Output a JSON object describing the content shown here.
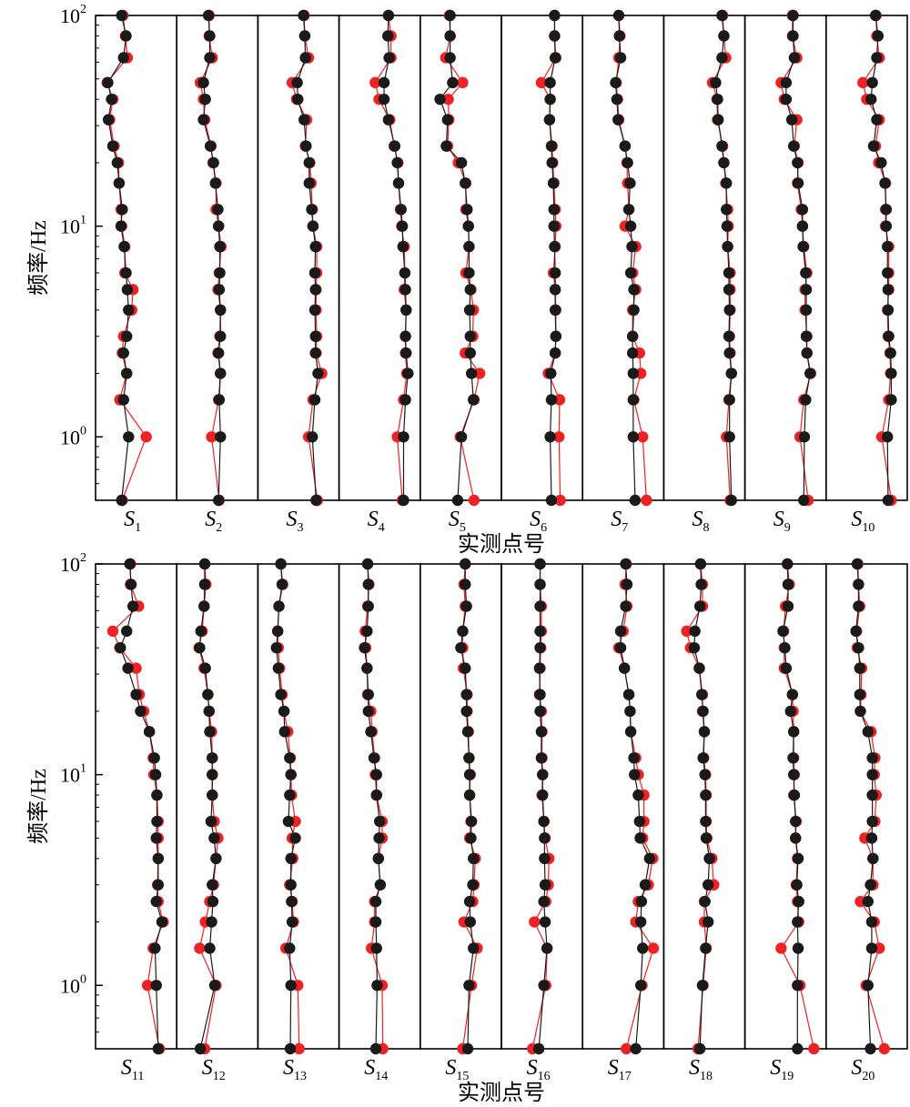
{
  "chart_data": [
    {
      "type": "line",
      "ylabel": "频率/Hz",
      "xlabel": "实测点号",
      "yscale": "log",
      "ylim": [
        0.5,
        100
      ],
      "yticks": [
        {
          "base": "10",
          "exp": "0"
        },
        {
          "base": "10",
          "exp": "1"
        },
        {
          "base": "10",
          "exp": "2"
        }
      ],
      "frequencies": [
        100,
        80,
        63,
        48,
        40,
        32,
        24,
        20,
        16,
        12,
        10,
        8,
        6,
        5,
        4,
        3,
        2.5,
        2,
        1.5,
        1,
        0.5
      ],
      "series_colors": {
        "black": "#1a1a1a",
        "red": "#ee2222"
      },
      "stations": [
        {
          "label": "S",
          "sub": "1",
          "black": [
            0.27,
            0.34,
            0.3,
            0.05,
            0.11,
            0.06,
            0.13,
            0.2,
            0.23,
            0.28,
            0.26,
            0.31,
            0.34,
            0.36,
            0.38,
            0.35,
            0.3,
            0.35,
            0.3,
            0.38,
            0.27
          ],
          "red": [
            0.29,
            0.33,
            0.36,
            0.04,
            0.13,
            0.08,
            0.15,
            0.22,
            0.23,
            0.26,
            0.27,
            0.32,
            0.32,
            0.45,
            0.43,
            0.3,
            0.28,
            0.35,
            0.24,
            0.66,
            0.28
          ]
        },
        {
          "label": "S",
          "sub": "2",
          "black": [
            0.36,
            0.38,
            0.38,
            0.28,
            0.31,
            0.28,
            0.39,
            0.44,
            0.47,
            0.51,
            0.52,
            0.54,
            0.54,
            0.53,
            0.55,
            0.55,
            0.52,
            0.55,
            0.53,
            0.55,
            0.52
          ],
          "red": [
            0.37,
            0.37,
            0.42,
            0.23,
            0.28,
            0.3,
            0.4,
            0.43,
            0.48,
            0.48,
            0.52,
            0.56,
            0.53,
            0.51,
            0.55,
            0.54,
            0.51,
            0.55,
            0.52,
            0.41,
            0.53
          ]
        },
        {
          "label": "S",
          "sub": "3",
          "black": [
            0.58,
            0.6,
            0.61,
            0.48,
            0.49,
            0.59,
            0.62,
            0.67,
            0.67,
            0.71,
            0.73,
            0.77,
            0.76,
            0.77,
            0.76,
            0.77,
            0.77,
            0.81,
            0.76,
            0.72,
            0.78
          ],
          "red": [
            0.59,
            0.6,
            0.66,
            0.4,
            0.47,
            0.63,
            0.61,
            0.68,
            0.7,
            0.72,
            0.73,
            0.79,
            0.79,
            0.78,
            0.78,
            0.79,
            0.78,
            0.87,
            0.73,
            0.66,
            0.8
          ]
        },
        {
          "label": "S",
          "sub": "4",
          "black": [
            0.64,
            0.63,
            0.65,
            0.57,
            0.57,
            0.64,
            0.74,
            0.78,
            0.8,
            0.84,
            0.86,
            0.87,
            0.9,
            0.91,
            0.92,
            0.91,
            0.92,
            0.95,
            0.91,
            0.88,
            0.88
          ],
          "red": [
            0.64,
            0.68,
            0.68,
            0.43,
            0.49,
            0.66,
            0.73,
            0.79,
            0.8,
            0.83,
            0.85,
            0.89,
            0.9,
            0.89,
            0.92,
            0.91,
            0.91,
            0.93,
            0.88,
            0.78,
            0.86
          ]
        },
        {
          "label": "S",
          "sub": "5",
          "black": [
            0.33,
            0.33,
            0.33,
            0.37,
            0.17,
            0.29,
            0.27,
            0.51,
            0.57,
            0.6,
            0.62,
            0.63,
            0.63,
            0.65,
            0.64,
            0.65,
            0.65,
            0.67,
            0.7,
            0.51,
            0.45
          ],
          "red": [
            0.32,
            0.33,
            0.26,
            0.53,
            0.3,
            0.31,
            0.29,
            0.46,
            0.58,
            0.58,
            0.62,
            0.63,
            0.58,
            0.66,
            0.7,
            0.69,
            0.57,
            0.8,
            0.71,
            0.49,
            0.71
          ]
        },
        {
          "label": "S",
          "sub": "6",
          "black": [
            0.7,
            0.7,
            0.71,
            0.63,
            0.63,
            0.62,
            0.65,
            0.66,
            0.68,
            0.69,
            0.69,
            0.7,
            0.71,
            0.71,
            0.71,
            0.72,
            0.71,
            0.64,
            0.65,
            0.63,
            0.65
          ],
          "red": [
            0.7,
            0.7,
            0.72,
            0.49,
            0.63,
            0.62,
            0.66,
            0.67,
            0.69,
            0.71,
            0.72,
            0.71,
            0.68,
            0.71,
            0.72,
            0.72,
            0.71,
            0.6,
            0.78,
            0.77,
            0.79
          ]
        },
        {
          "label": "S",
          "sub": "7",
          "black": [
            0.43,
            0.44,
            0.46,
            0.38,
            0.4,
            0.42,
            0.53,
            0.57,
            0.61,
            0.59,
            0.62,
            0.64,
            0.62,
            0.67,
            0.67,
            0.65,
            0.65,
            0.66,
            0.66,
            0.66,
            0.69
          ],
          "red": [
            0.43,
            0.45,
            0.43,
            0.39,
            0.41,
            0.43,
            0.53,
            0.56,
            0.57,
            0.59,
            0.53,
            0.7,
            0.65,
            0.7,
            0.65,
            0.65,
            0.76,
            0.78,
            0.67,
            0.81,
            0.87
          ]
        },
        {
          "label": "S",
          "sub": "8",
          "black": [
            0.78,
            0.81,
            0.78,
            0.68,
            0.71,
            0.72,
            0.78,
            0.81,
            0.85,
            0.85,
            0.86,
            0.87,
            0.89,
            0.89,
            0.9,
            0.89,
            0.9,
            0.93,
            0.9,
            0.9,
            0.93
          ],
          "red": [
            0.79,
            0.81,
            0.84,
            0.63,
            0.7,
            0.71,
            0.79,
            0.81,
            0.84,
            0.87,
            0.88,
            0.87,
            0.91,
            0.91,
            0.91,
            0.9,
            0.91,
            0.93,
            0.89,
            0.85,
            0.91
          ]
        },
        {
          "label": "S",
          "sub": "9",
          "black": [
            0.62,
            0.62,
            0.64,
            0.51,
            0.51,
            0.6,
            0.63,
            0.69,
            0.7,
            0.77,
            0.77,
            0.78,
            0.82,
            0.83,
            0.83,
            0.83,
            0.84,
            0.89,
            0.82,
            0.8,
            0.79
          ],
          "red": [
            0.61,
            0.61,
            0.68,
            0.43,
            0.48,
            0.68,
            0.64,
            0.7,
            0.69,
            0.75,
            0.77,
            0.79,
            0.84,
            0.81,
            0.81,
            0.84,
            0.84,
            0.9,
            0.79,
            0.73,
            0.86
          ]
        },
        {
          "label": "S",
          "sub": "10",
          "black": [
            0.64,
            0.68,
            0.66,
            0.59,
            0.57,
            0.66,
            0.61,
            0.73,
            0.79,
            0.81,
            0.81,
            0.83,
            0.83,
            0.84,
            0.84,
            0.85,
            0.88,
            0.89,
            0.89,
            0.83,
            0.84
          ],
          "red": [
            0.65,
            0.66,
            0.7,
            0.44,
            0.5,
            0.7,
            0.64,
            0.69,
            0.8,
            0.8,
            0.8,
            0.85,
            0.85,
            0.85,
            0.83,
            0.84,
            0.87,
            0.88,
            0.85,
            0.74,
            0.89
          ]
        },
        {
          "label": "S",
          "sub": "11",
          "black": [
            0.4,
            0.42,
            0.45,
            0.35,
            0.25,
            0.37,
            0.5,
            0.57,
            0.71,
            0.79,
            0.81,
            0.83,
            0.83,
            0.82,
            0.85,
            0.85,
            0.82,
            0.91,
            0.8,
            0.82,
            0.85
          ],
          "red": [
            0.41,
            0.41,
            0.54,
            0.13,
            0.24,
            0.5,
            0.55,
            0.62,
            0.71,
            0.77,
            0.78,
            0.83,
            0.85,
            0.85,
            0.85,
            0.84,
            0.85,
            0.93,
            0.77,
            0.68,
            0.87
          ]
        },
        {
          "label": "S",
          "sub": "12",
          "black": [
            0.3,
            0.3,
            0.29,
            0.24,
            0.22,
            0.31,
            0.35,
            0.37,
            0.38,
            0.42,
            0.42,
            0.42,
            0.4,
            0.45,
            0.48,
            0.42,
            0.43,
            0.41,
            0.38,
            0.46,
            0.23
          ],
          "red": [
            0.3,
            0.32,
            0.29,
            0.26,
            0.21,
            0.29,
            0.35,
            0.37,
            0.41,
            0.42,
            0.42,
            0.42,
            0.45,
            0.51,
            0.48,
            0.44,
            0.38,
            0.31,
            0.22,
            0.48,
            0.3
          ]
        },
        {
          "label": "S",
          "sub": "13",
          "black": [
            0.22,
            0.24,
            0.19,
            0.17,
            0.15,
            0.18,
            0.22,
            0.27,
            0.28,
            0.36,
            0.38,
            0.36,
            0.34,
            0.45,
            0.38,
            0.38,
            0.39,
            0.4,
            0.36,
            0.38,
            0.37
          ],
          "red": [
            0.22,
            0.25,
            0.19,
            0.17,
            0.18,
            0.2,
            0.24,
            0.27,
            0.33,
            0.37,
            0.38,
            0.39,
            0.45,
            0.4,
            0.41,
            0.36,
            0.4,
            0.42,
            0.3,
            0.49,
            0.51
          ]
        },
        {
          "label": "S",
          "sub": "14",
          "black": [
            0.31,
            0.32,
            0.32,
            0.3,
            0.26,
            0.3,
            0.32,
            0.32,
            0.36,
            0.41,
            0.45,
            0.45,
            0.5,
            0.49,
            0.48,
            0.51,
            0.44,
            0.44,
            0.45,
            0.46,
            0.44
          ],
          "red": [
            0.31,
            0.33,
            0.31,
            0.27,
            0.28,
            0.3,
            0.31,
            0.36,
            0.38,
            0.42,
            0.43,
            0.45,
            0.54,
            0.54,
            0.48,
            0.51,
            0.42,
            0.42,
            0.37,
            0.54,
            0.55
          ]
        },
        {
          "label": "S",
          "sub": "15",
          "black": [
            0.57,
            0.57,
            0.59,
            0.53,
            0.5,
            0.57,
            0.59,
            0.59,
            0.61,
            0.63,
            0.64,
            0.64,
            0.67,
            0.66,
            0.7,
            0.69,
            0.64,
            0.65,
            0.7,
            0.63,
            0.61
          ],
          "red": [
            0.57,
            0.55,
            0.57,
            0.53,
            0.53,
            0.54,
            0.6,
            0.6,
            0.62,
            0.63,
            0.65,
            0.64,
            0.66,
            0.64,
            0.73,
            0.71,
            0.69,
            0.55,
            0.76,
            0.67,
            0.53
          ]
        },
        {
          "label": "S",
          "sub": "16",
          "black": [
            0.47,
            0.47,
            0.47,
            0.47,
            0.47,
            0.46,
            0.47,
            0.47,
            0.49,
            0.49,
            0.51,
            0.51,
            0.53,
            0.54,
            0.54,
            0.55,
            0.53,
            0.55,
            0.58,
            0.53,
            0.45
          ],
          "red": [
            0.47,
            0.47,
            0.49,
            0.49,
            0.48,
            0.47,
            0.46,
            0.49,
            0.5,
            0.5,
            0.51,
            0.5,
            0.53,
            0.55,
            0.61,
            0.6,
            0.56,
            0.38,
            0.58,
            0.56,
            0.35
          ]
        },
        {
          "label": "S",
          "sub": "17",
          "black": [
            0.54,
            0.56,
            0.54,
            0.46,
            0.46,
            0.52,
            0.59,
            0.61,
            0.62,
            0.67,
            0.68,
            0.74,
            0.76,
            0.77,
            0.92,
            0.85,
            0.79,
            0.78,
            0.81,
            0.78,
            0.7
          ],
          "red": [
            0.55,
            0.53,
            0.56,
            0.5,
            0.43,
            0.52,
            0.59,
            0.61,
            0.62,
            0.7,
            0.74,
            0.83,
            0.83,
            0.81,
            0.97,
            0.9,
            0.74,
            0.7,
            0.98,
            0.8,
            0.55
          ]
        },
        {
          "label": "S",
          "sub": "18",
          "black": [
            0.44,
            0.45,
            0.43,
            0.35,
            0.34,
            0.42,
            0.46,
            0.48,
            0.5,
            0.48,
            0.51,
            0.52,
            0.52,
            0.53,
            0.58,
            0.56,
            0.51,
            0.56,
            0.52,
            0.47,
            0.43
          ],
          "red": [
            0.44,
            0.47,
            0.47,
            0.22,
            0.28,
            0.42,
            0.47,
            0.47,
            0.5,
            0.49,
            0.52,
            0.53,
            0.53,
            0.54,
            0.62,
            0.65,
            0.5,
            0.5,
            0.53,
            0.48,
            0.4
          ]
        },
        {
          "label": "S",
          "sub": "19",
          "black": [
            0.53,
            0.54,
            0.54,
            0.46,
            0.49,
            0.51,
            0.61,
            0.58,
            0.63,
            0.62,
            0.63,
            0.64,
            0.66,
            0.66,
            0.7,
            0.68,
            0.71,
            0.69,
            0.7,
            0.69,
            0.69
          ],
          "red": [
            0.53,
            0.56,
            0.5,
            0.47,
            0.48,
            0.48,
            0.61,
            0.62,
            0.63,
            0.63,
            0.64,
            0.63,
            0.67,
            0.66,
            0.69,
            0.67,
            0.69,
            0.71,
            0.43,
            0.73,
            0.95
          ]
        },
        {
          "label": "S",
          "sub": "20",
          "black": [
            0.35,
            0.37,
            0.37,
            0.33,
            0.37,
            0.39,
            0.39,
            0.4,
            0.52,
            0.59,
            0.59,
            0.59,
            0.59,
            0.58,
            0.6,
            0.56,
            0.52,
            0.58,
            0.58,
            0.52,
            0.56
          ],
          "red": [
            0.36,
            0.37,
            0.39,
            0.34,
            0.35,
            0.42,
            0.41,
            0.4,
            0.57,
            0.63,
            0.62,
            0.65,
            0.63,
            0.47,
            0.6,
            0.6,
            0.4,
            0.62,
            0.7,
            0.49,
            0.78
          ]
        }
      ]
    }
  ]
}
